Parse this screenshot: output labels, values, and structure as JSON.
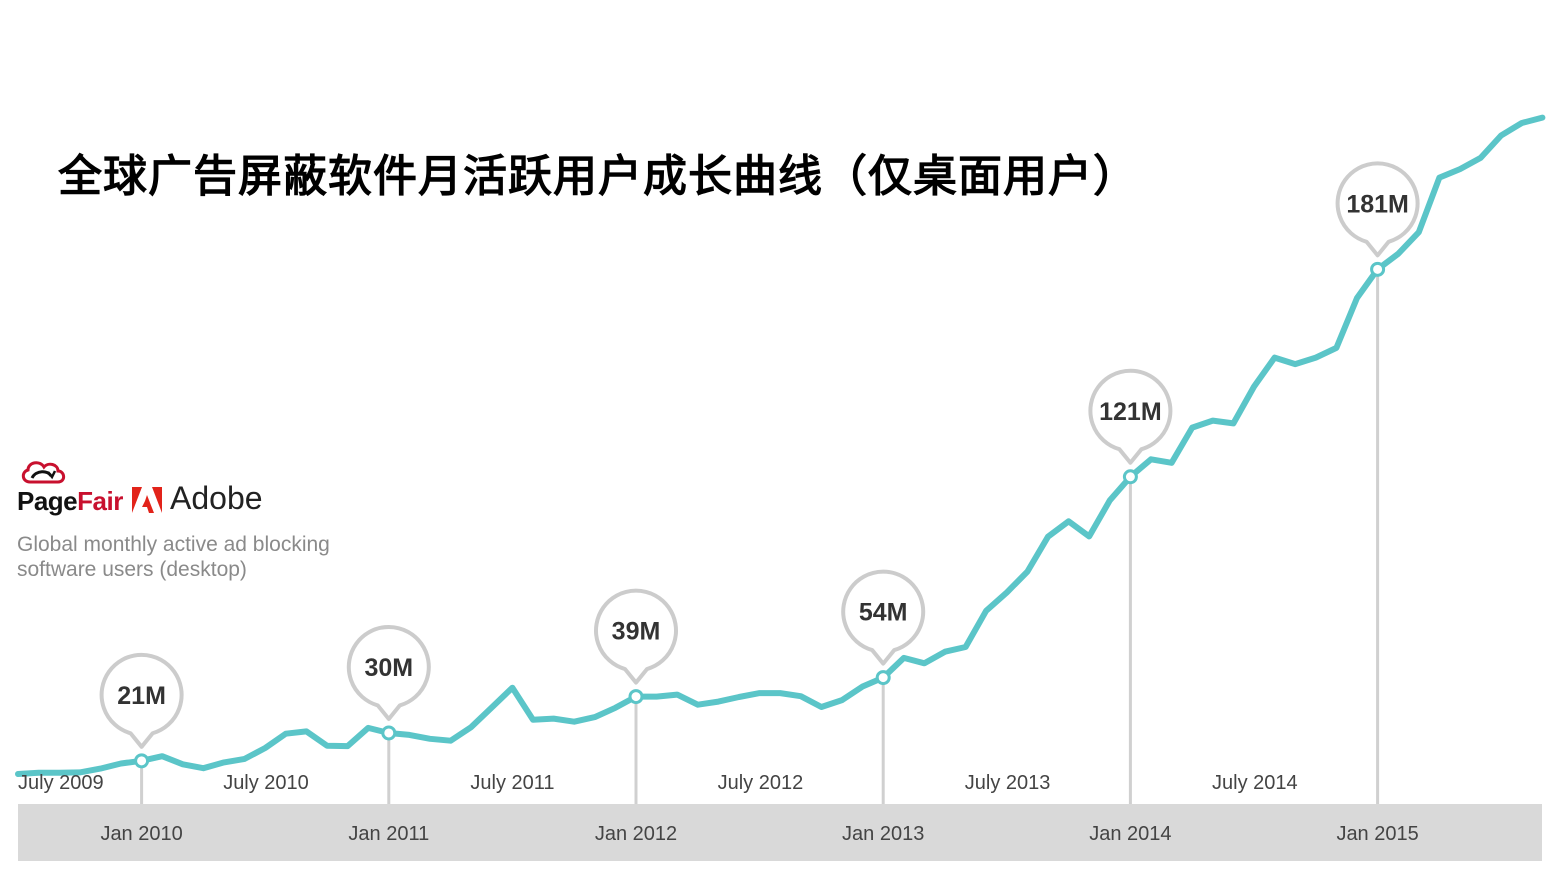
{
  "title": "全球广告屏蔽软件月活跃用户成长曲线（仅桌面用户）",
  "brand": {
    "pagefair_page": "Page",
    "pagefair_fair": "Fair",
    "adobe": "Adobe",
    "subtitle": "Global monthly active ad blocking software users (desktop)"
  },
  "colors": {
    "line": "#5BC5C8",
    "callout_stroke": "#cccccc",
    "axis_band": "#d9d9d9",
    "adobe_red": "#e2231a",
    "pagefair_red": "#c8102e"
  },
  "chart_data": {
    "type": "line",
    "x_start": "2009-07",
    "x_interval": "month",
    "series": [
      {
        "name": "",
        "values": [
          7.5,
          7.8,
          7.8,
          7.9,
          8.9,
          10.2,
          10.9,
          12.1,
          10.0,
          9.0,
          10.5,
          11.4,
          14.2,
          17.9,
          18.5,
          14.8,
          14.7,
          19.4,
          18.1,
          17.6,
          16.6,
          16.1,
          19.6,
          24.7,
          29.8,
          21.5,
          21.8,
          21.0,
          22.2,
          24.6,
          27.5,
          27.5,
          28.0,
          25.4,
          26.2,
          27.4,
          28.4,
          28.4,
          27.6,
          24.8,
          26.6,
          30.1,
          32.4,
          37.5,
          36.1,
          39.1,
          40.3,
          49.7,
          54.4,
          59.8,
          68.8,
          72.8,
          68.9,
          78.2,
          84.3,
          88.8,
          87.9,
          97.0,
          98.8,
          98.1,
          107.6,
          115.1,
          113.4,
          115.1,
          117.6,
          130.5,
          137.9,
          141.9,
          147.5,
          161.6,
          163.8,
          166.7,
          172.5,
          175.7,
          177.1
        ]
      }
    ],
    "callouts": [
      {
        "date": "Jan 2010",
        "label": "21M"
      },
      {
        "date": "Jan 2011",
        "label": "30M"
      },
      {
        "date": "Jan 2012",
        "label": "39M"
      },
      {
        "date": "Jan 2013",
        "label": "54M"
      },
      {
        "date": "Jan 2014",
        "label": "121M"
      },
      {
        "date": "Jan 2015",
        "label": "181M"
      }
    ],
    "x_ticks_top": [
      "July 2009",
      "July 2010",
      "July 2011",
      "July 2012",
      "July 2013",
      "July 2014"
    ],
    "x_ticks_bottom": [
      "Jan 2010",
      "Jan 2011",
      "Jan 2012",
      "Jan 2013",
      "Jan 2014",
      "Jan 2015"
    ],
    "grid": false,
    "legend": false
  }
}
